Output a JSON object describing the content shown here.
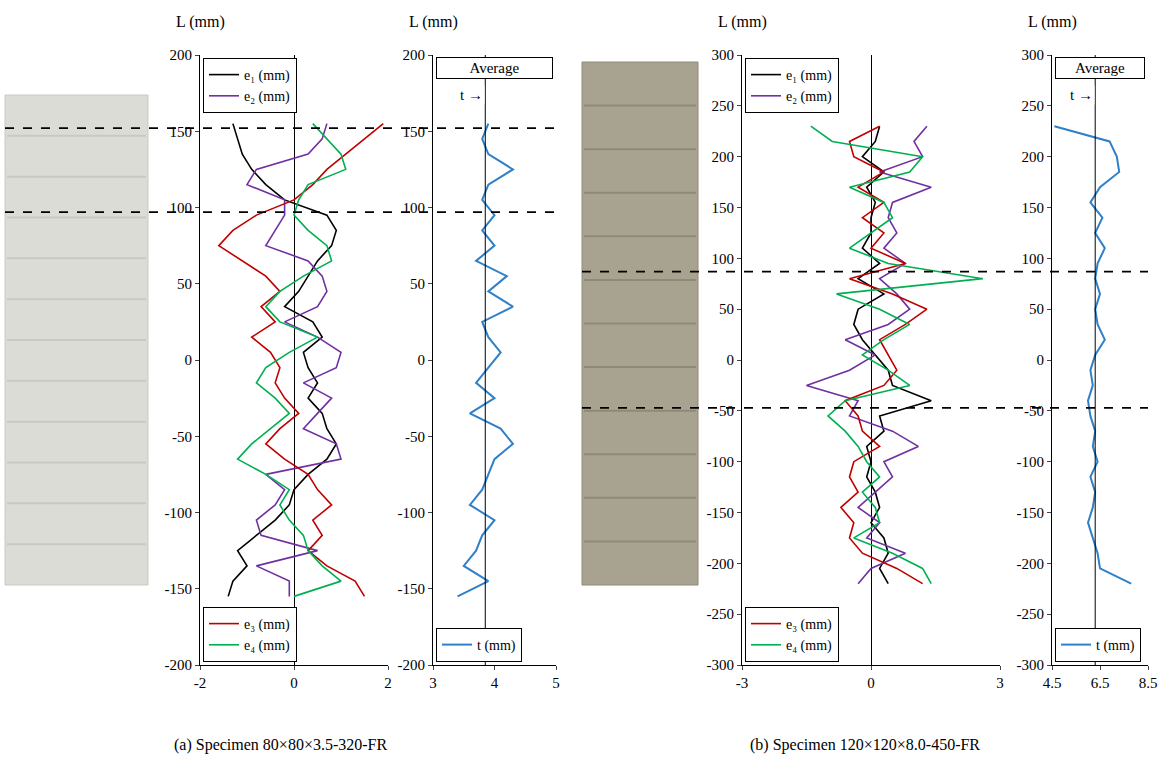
{
  "chart_data": [
    {
      "caption": "(a) Specimen 80×80×3.5-320-FR",
      "dashed_lines": [
        152,
        97
      ],
      "panels": [
        {
          "type": "line",
          "y_title": "L (mm)",
          "xlim": [
            -2,
            2
          ],
          "xticks": [
            -2,
            0,
            2
          ],
          "ylim": [
            -200,
            200
          ],
          "yticks": [
            -200,
            -150,
            -100,
            -50,
            0,
            50,
            100,
            150,
            200
          ],
          "y": [
            155,
            145,
            135,
            125,
            115,
            105,
            95,
            85,
            75,
            65,
            55,
            45,
            35,
            25,
            15,
            5,
            -5,
            -15,
            -25,
            -35,
            -45,
            -55,
            -65,
            -75,
            -85,
            -95,
            -105,
            -115,
            -125,
            -135,
            -145,
            -155
          ],
          "series": [
            {
              "name": "e₁ (mm)",
              "color": "#000000",
              "legend": "upper left",
              "values": [
                -1.3,
                -1.2,
                -1.1,
                -0.9,
                -0.6,
                -0.2,
                0.7,
                0.9,
                0.8,
                0.5,
                0.3,
                0.1,
                -0.2,
                0.4,
                0.6,
                0.2,
                0.3,
                0.5,
                0.3,
                0.6,
                0.7,
                0.9,
                0.7,
                0.3,
                0.0,
                -0.1,
                -0.4,
                -0.8,
                -1.2,
                -1.0,
                -1.3,
                -1.4
              ]
            },
            {
              "name": "e₂ (mm)",
              "color": "#7030a0",
              "legend": "upper left",
              "values": [
                0.7,
                0.6,
                0.3,
                -0.8,
                -1.0,
                -0.2,
                -0.2,
                -0.4,
                -0.6,
                0.3,
                0.6,
                0.7,
                0.5,
                -0.2,
                0.5,
                1.0,
                0.9,
                0.2,
                0.8,
                0.5,
                0.2,
                0.9,
                1.0,
                -0.6,
                -0.2,
                -0.4,
                -0.8,
                -0.7,
                0.5,
                -0.8,
                -0.1,
                -0.1
              ]
            },
            {
              "name": "e₃ (mm)",
              "color": "#c00000",
              "legend": "lower left",
              "values": [
                1.9,
                1.5,
                1.1,
                0.7,
                0.4,
                0.0,
                -0.8,
                -1.3,
                -1.6,
                -1.1,
                -0.6,
                -0.3,
                -0.7,
                -0.4,
                -0.9,
                -0.5,
                -0.3,
                -0.4,
                -0.2,
                0.1,
                -0.3,
                -0.6,
                -0.2,
                0.3,
                0.5,
                0.8,
                0.4,
                0.6,
                0.3,
                0.7,
                1.3,
                1.5
              ]
            },
            {
              "name": "e₄ (mm)",
              "color": "#00b050",
              "legend": "lower left",
              "values": [
                0.4,
                0.7,
                1.0,
                1.1,
                0.3,
                0.1,
                0.0,
                0.3,
                0.7,
                0.8,
                0.2,
                -0.3,
                -0.6,
                -0.3,
                0.5,
                -0.1,
                -0.6,
                -0.8,
                -0.4,
                -0.1,
                -0.5,
                -0.9,
                -1.2,
                -0.6,
                -0.1,
                -0.3,
                -0.1,
                0.2,
                0.3,
                0.6,
                1.0,
                0.0
              ]
            }
          ]
        },
        {
          "type": "line",
          "y_title": "L (mm)",
          "xlim": [
            3,
            5
          ],
          "xticks": [
            3,
            4,
            5
          ],
          "ylim": [
            -200,
            200
          ],
          "yticks": [
            -200,
            -150,
            -100,
            -50,
            0,
            50,
            100,
            150,
            200
          ],
          "average": 3.85,
          "annotations": [
            "Average",
            "t →"
          ],
          "y": [
            155,
            145,
            135,
            125,
            115,
            105,
            95,
            85,
            75,
            65,
            55,
            45,
            35,
            25,
            15,
            5,
            -5,
            -15,
            -25,
            -35,
            -45,
            -55,
            -65,
            -75,
            -85,
            -95,
            -105,
            -115,
            -125,
            -135,
            -145,
            -155
          ],
          "series": [
            {
              "name": "t (mm)",
              "color": "#2f80c8",
              "legend": "lower left",
              "values": [
                3.9,
                3.8,
                3.9,
                4.3,
                3.9,
                3.8,
                4.0,
                3.8,
                4.0,
                3.7,
                4.2,
                3.9,
                4.3,
                3.8,
                3.9,
                4.1,
                3.9,
                3.7,
                4.0,
                3.6,
                4.1,
                4.3,
                4.0,
                3.9,
                3.8,
                3.6,
                4.0,
                3.8,
                3.7,
                3.5,
                3.9,
                3.4
              ]
            }
          ]
        }
      ]
    },
    {
      "caption": "(b) Specimen 120×120×8.0-450-FR",
      "dashed_lines": [
        87,
        -47
      ],
      "panels": [
        {
          "type": "line",
          "y_title": "L (mm)",
          "xlim": [
            -3,
            3
          ],
          "xticks": [
            -3,
            0,
            3
          ],
          "ylim": [
            -300,
            300
          ],
          "yticks": [
            -300,
            -250,
            -200,
            -150,
            -100,
            -50,
            0,
            50,
            100,
            150,
            200,
            250,
            300
          ],
          "y": [
            230,
            215,
            200,
            185,
            170,
            155,
            140,
            125,
            110,
            95,
            80,
            65,
            50,
            35,
            20,
            5,
            -10,
            -25,
            -40,
            -55,
            -70,
            -85,
            -100,
            -115,
            -130,
            -145,
            -160,
            -175,
            -190,
            -205,
            -220
          ],
          "series": [
            {
              "name": "e₁ (mm)",
              "color": "#000000",
              "legend": "upper left",
              "values": [
                0.2,
                0.1,
                -0.2,
                0.3,
                -0.1,
                0.1,
                0.0,
                0.0,
                -0.2,
                0.2,
                -0.3,
                0.3,
                -0.3,
                -0.4,
                -0.2,
                0.1,
                0.4,
                0.5,
                1.4,
                0.2,
                0.3,
                -0.1,
                0.0,
                -0.1,
                0.1,
                0.2,
                0.0,
                0.3,
                0.4,
                0.2,
                0.4
              ]
            },
            {
              "name": "e₂ (mm)",
              "color": "#7030a0",
              "legend": "upper left",
              "values": [
                1.3,
                1.0,
                1.2,
                0.2,
                1.4,
                0.5,
                0.4,
                0.6,
                0.3,
                0.8,
                0.2,
                0.6,
                0.9,
                0.4,
                -0.6,
                0.1,
                -0.5,
                -1.5,
                -0.3,
                -0.5,
                0.5,
                1.1,
                0.3,
                0.5,
                0.1,
                -0.3,
                0.2,
                -0.1,
                0.8,
                0.0,
                -0.3
              ]
            },
            {
              "name": "e₃ (mm)",
              "color": "#c00000",
              "legend": "lower left",
              "values": [
                0.2,
                -0.5,
                -0.4,
                0.3,
                -0.3,
                0.3,
                -0.2,
                0.3,
                0.0,
                0.8,
                -0.5,
                0.5,
                1.3,
                0.8,
                0.2,
                0.4,
                0.6,
                0.3,
                -0.6,
                -0.3,
                -0.2,
                0.2,
                -0.4,
                -0.5,
                -0.3,
                -0.7,
                -0.4,
                -0.5,
                -0.2,
                0.6,
                1.2
              ]
            },
            {
              "name": "e₄ (mm)",
              "color": "#00b050",
              "legend": "lower left",
              "values": [
                -1.4,
                -0.9,
                1.2,
                0.9,
                -0.5,
                0.3,
                0.5,
                0.0,
                -0.5,
                0.4,
                2.6,
                -0.8,
                0.2,
                0.9,
                0.3,
                -0.2,
                0.4,
                0.9,
                -0.6,
                -1.0,
                -0.6,
                -0.3,
                -0.1,
                0.2,
                -0.2,
                0.1,
                0.2,
                -0.4,
                0.5,
                1.2,
                1.4
              ]
            }
          ]
        },
        {
          "type": "line",
          "y_title": "L (mm)",
          "xlim": [
            4.5,
            8.5
          ],
          "xticks": [
            4.5,
            6.5,
            8.5
          ],
          "ylim": [
            -300,
            300
          ],
          "yticks": [
            -300,
            -250,
            -200,
            -150,
            -100,
            -50,
            0,
            50,
            100,
            150,
            200,
            250,
            300
          ],
          "average": 6.3,
          "annotations": [
            "Average",
            "t →"
          ],
          "y": [
            230,
            215,
            200,
            185,
            170,
            155,
            140,
            125,
            110,
            95,
            80,
            65,
            50,
            35,
            20,
            5,
            -10,
            -25,
            -40,
            -55,
            -70,
            -85,
            -100,
            -115,
            -130,
            -145,
            -160,
            -175,
            -190,
            -205,
            -220
          ],
          "series": [
            {
              "name": "t (mm)",
              "color": "#2f80c8",
              "legend": "lower left",
              "values": [
                4.6,
                6.9,
                7.2,
                7.3,
                6.5,
                6.1,
                6.6,
                6.3,
                6.7,
                6.4,
                6.3,
                6.5,
                6.3,
                6.4,
                6.7,
                6.3,
                6.1,
                6.2,
                6.0,
                6.1,
                6.3,
                6.2,
                6.4,
                6.1,
                6.3,
                6.2,
                6.0,
                6.2,
                6.4,
                6.5,
                7.8
              ]
            }
          ]
        }
      ]
    }
  ]
}
